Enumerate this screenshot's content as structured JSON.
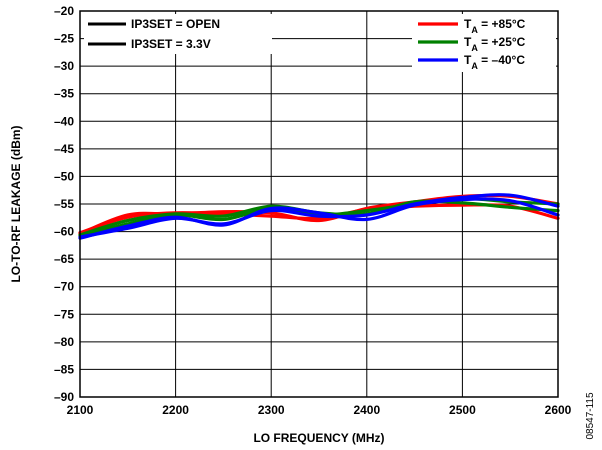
{
  "chart_data": {
    "type": "line",
    "xlabel": "LO FREQUENCY (MHz)",
    "ylabel": "LO-TO-RF LEAKAGE (dBm)",
    "xlim": [
      2100,
      2600
    ],
    "ylim": [
      -90,
      -20
    ],
    "x_ticks": [
      "2100",
      "2200",
      "2300",
      "2400",
      "2500",
      "2600"
    ],
    "y_ticks": [
      "–20",
      "–25",
      "–30",
      "–35",
      "–40",
      "–45",
      "–50",
      "–55",
      "–60",
      "–65",
      "–70",
      "–75",
      "–80",
      "–85",
      "–90"
    ],
    "grid": true,
    "legend_left": [
      "IP3SET = OPEN",
      "IP3SET = 3.3V"
    ],
    "legend_right": [
      {
        "label_main": "T",
        "label_sub": "A",
        "label_rest": " = +85°C",
        "color": "#ff0000"
      },
      {
        "label_main": "T",
        "label_sub": "A",
        "label_rest": " = +25°C",
        "color": "#008000"
      },
      {
        "label_main": "T",
        "label_sub": "A",
        "label_rest": " = –40°C",
        "color": "#0000ff"
      }
    ],
    "figure_id": "08547-115",
    "series": [
      {
        "color": "#ff0000",
        "x": [
          2100,
          2150,
          2200,
          2250,
          2300,
          2350,
          2400,
          2450,
          2500,
          2550,
          2600
        ],
        "y": [
          -60.2,
          -57.4,
          -56.6,
          -56.8,
          -57.2,
          -57.6,
          -56.0,
          -55.4,
          -55.2,
          -55.4,
          -57.6
        ]
      },
      {
        "color": "#ff0000",
        "x": [
          2100,
          2150,
          2200,
          2250,
          2300,
          2350,
          2400,
          2450,
          2500,
          2550,
          2600
        ],
        "y": [
          -60.4,
          -57.0,
          -56.8,
          -56.4,
          -56.6,
          -58.0,
          -55.8,
          -54.6,
          -53.6,
          -53.6,
          -55.0
        ]
      },
      {
        "color": "#008000",
        "x": [
          2100,
          2150,
          2200,
          2250,
          2300,
          2350,
          2400,
          2450,
          2500,
          2550,
          2600
        ],
        "y": [
          -60.6,
          -58.0,
          -56.8,
          -57.2,
          -55.4,
          -56.6,
          -56.8,
          -54.6,
          -54.8,
          -55.6,
          -56.2
        ]
      },
      {
        "color": "#008000",
        "x": [
          2100,
          2150,
          2200,
          2250,
          2300,
          2350,
          2400,
          2450,
          2500,
          2550,
          2600
        ],
        "y": [
          -60.8,
          -58.6,
          -57.0,
          -57.8,
          -55.8,
          -57.0,
          -56.2,
          -55.0,
          -54.0,
          -54.6,
          -55.0
        ]
      },
      {
        "color": "#0000ff",
        "x": [
          2100,
          2150,
          2200,
          2250,
          2300,
          2350,
          2400,
          2450,
          2500,
          2550,
          2600
        ],
        "y": [
          -61.2,
          -59.0,
          -57.4,
          -58.8,
          -55.8,
          -56.6,
          -57.8,
          -55.2,
          -54.2,
          -54.4,
          -57.0
        ]
      },
      {
        "color": "#0000ff",
        "x": [
          2100,
          2150,
          2200,
          2250,
          2300,
          2350,
          2400,
          2450,
          2500,
          2550,
          2600
        ],
        "y": [
          -61.0,
          -59.4,
          -57.6,
          -58.6,
          -56.2,
          -57.2,
          -57.0,
          -55.0,
          -53.8,
          -53.4,
          -55.4
        ]
      }
    ]
  }
}
